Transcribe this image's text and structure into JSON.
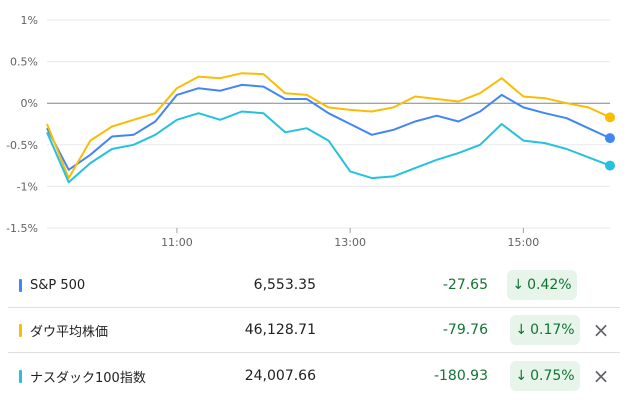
{
  "chart_data": {
    "type": "line",
    "title": "",
    "xlabel": "",
    "ylabel": "",
    "x_ticks": [
      "11:00",
      "13:00",
      "15:00"
    ],
    "y_ticks": [
      "1%",
      "0.5%",
      "0%",
      "-0.5%",
      "-1%",
      "-1.5%"
    ],
    "ylim": [
      -1.5,
      1
    ],
    "xlim": [
      "09:30",
      "16:00"
    ],
    "grid": "horizontal",
    "series": [
      {
        "name": "S&P 500",
        "color": "#4285f4",
        "x": [
          "09:30",
          "09:45",
          "10:00",
          "10:15",
          "10:30",
          "10:45",
          "11:00",
          "11:15",
          "11:30",
          "11:45",
          "12:00",
          "12:15",
          "12:30",
          "12:45",
          "13:00",
          "13:15",
          "13:30",
          "13:45",
          "14:00",
          "14:15",
          "14:30",
          "14:45",
          "15:00",
          "15:15",
          "15:30",
          "15:45",
          "16:00"
        ],
        "values": [
          -0.3,
          -0.8,
          -0.62,
          -0.4,
          -0.38,
          -0.22,
          0.1,
          0.18,
          0.15,
          0.22,
          0.2,
          0.05,
          0.05,
          -0.12,
          -0.25,
          -0.38,
          -0.32,
          -0.22,
          -0.15,
          -0.22,
          -0.1,
          0.1,
          -0.05,
          -0.12,
          -0.18,
          -0.3,
          -0.42
        ]
      },
      {
        "name": "ダウ平均株価",
        "color": "#fbbc04",
        "x": [
          "09:30",
          "09:45",
          "10:00",
          "10:15",
          "10:30",
          "10:45",
          "11:00",
          "11:15",
          "11:30",
          "11:45",
          "12:00",
          "12:15",
          "12:30",
          "12:45",
          "13:00",
          "13:15",
          "13:30",
          "13:45",
          "14:00",
          "14:15",
          "14:30",
          "14:45",
          "15:00",
          "15:15",
          "15:30",
          "15:45",
          "16:00"
        ],
        "values": [
          -0.25,
          -0.9,
          -0.45,
          -0.28,
          -0.2,
          -0.12,
          0.18,
          0.32,
          0.3,
          0.36,
          0.35,
          0.12,
          0.1,
          -0.05,
          -0.08,
          -0.1,
          -0.05,
          0.08,
          0.05,
          0.02,
          0.12,
          0.3,
          0.08,
          0.06,
          0.0,
          -0.05,
          -0.17
        ]
      },
      {
        "name": "ナスダック100指数",
        "color": "#24c1e0",
        "x": [
          "09:30",
          "09:45",
          "10:00",
          "10:15",
          "10:30",
          "10:45",
          "11:00",
          "11:15",
          "11:30",
          "11:45",
          "12:00",
          "12:15",
          "12:30",
          "12:45",
          "13:00",
          "13:15",
          "13:30",
          "13:45",
          "14:00",
          "14:15",
          "14:30",
          "14:45",
          "15:00",
          "15:15",
          "15:30",
          "15:45",
          "16:00"
        ],
        "values": [
          -0.35,
          -0.95,
          -0.72,
          -0.55,
          -0.5,
          -0.38,
          -0.2,
          -0.12,
          -0.2,
          -0.1,
          -0.12,
          -0.35,
          -0.3,
          -0.45,
          -0.82,
          -0.9,
          -0.88,
          -0.78,
          -0.68,
          -0.6,
          -0.5,
          -0.25,
          -0.45,
          -0.48,
          -0.55,
          -0.65,
          -0.75
        ]
      }
    ]
  },
  "rows": [
    {
      "name": "S&P 500",
      "price": "6,553.35",
      "change": "-27.65",
      "arrow": "↓",
      "pct": "0.42%",
      "color": "#4285f4",
      "removable": false
    },
    {
      "name": "ダウ平均株価",
      "price": "46,128.71",
      "change": "-79.76",
      "arrow": "↓",
      "pct": "0.17%",
      "color": "#fbbc04",
      "removable": true
    },
    {
      "name": "ナスダック100指数",
      "price": "24,007.66",
      "change": "-180.93",
      "arrow": "↓",
      "pct": "0.75%",
      "color": "#24c1e0",
      "removable": true
    }
  ],
  "icons": {
    "remove": "×",
    "remove_icon_name": "close-icon"
  }
}
